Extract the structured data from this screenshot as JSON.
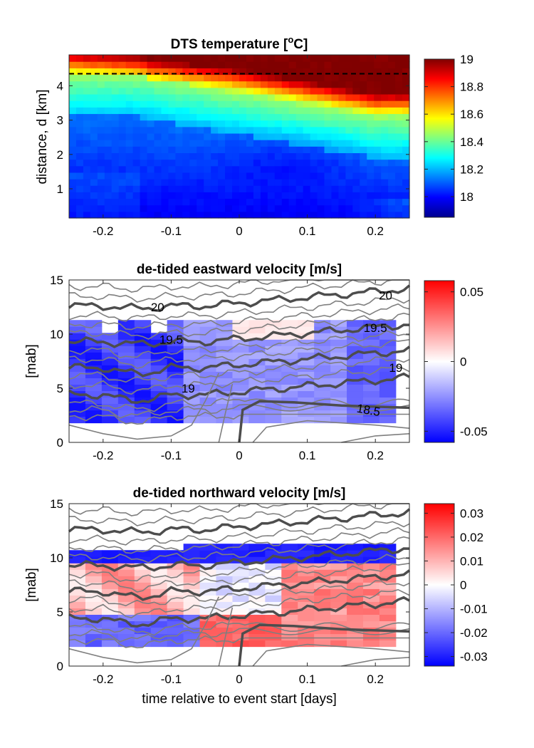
{
  "chart_data": [
    {
      "type": "heatmap",
      "title": "DTS temperature [",
      "title_sup": "o",
      "title_end": "C]",
      "ylabel": "distance, d [km]",
      "xlabel": "",
      "xlim": [
        -0.25,
        0.25
      ],
      "ylim": [
        0.15,
        4.9
      ],
      "xticks": [
        "-0.2",
        "-0.1",
        "0",
        "0.1",
        "0.2"
      ],
      "xtick_values": [
        -0.2,
        -0.1,
        0,
        0.1,
        0.2
      ],
      "yticks": [
        "1",
        "2",
        "3",
        "4"
      ],
      "ytick_values": [
        1,
        2,
        3,
        4
      ],
      "dashed_line_y": 4.35,
      "colormap": "jet",
      "clim": [
        17.85,
        19.0
      ],
      "colorbar_ticks": [
        "19",
        "18.8",
        "18.6",
        "18.4",
        "18.2",
        "18"
      ],
      "colorbar_values": [
        19.0,
        18.8,
        18.6,
        18.4,
        18.2,
        18.0
      ]
    },
    {
      "type": "heatmap",
      "title": "de-tided eastward velocity [m/s]",
      "ylabel": "[mab]",
      "xlabel": "",
      "xlim": [
        -0.25,
        0.25
      ],
      "ylim": [
        0,
        15
      ],
      "xticks": [
        "-0.2",
        "-0.1",
        "0",
        "0.1",
        "0.2"
      ],
      "xtick_values": [
        -0.2,
        -0.1,
        0,
        0.1,
        0.2
      ],
      "yticks": [
        "0",
        "5",
        "10",
        "15"
      ],
      "ytick_values": [
        0,
        5,
        10,
        15
      ],
      "colormap": "bwr",
      "clim": [
        -0.058,
        0.058
      ],
      "colorbar_ticks": [
        "0.05",
        "0",
        "-0.05"
      ],
      "colorbar_values": [
        0.05,
        0,
        -0.05
      ],
      "contour_labels": [
        {
          "text": "20",
          "x": -0.12,
          "y": 12.5
        },
        {
          "text": "20",
          "x": 0.215,
          "y": 13.6
        },
        {
          "text": "19.5",
          "x": -0.1,
          "y": 9.5
        },
        {
          "text": "19.5",
          "x": 0.2,
          "y": 10.6
        },
        {
          "text": "19",
          "x": -0.075,
          "y": 5.0
        },
        {
          "text": "19",
          "x": 0.23,
          "y": 6.9
        },
        {
          "text": "18.5",
          "x": 0.19,
          "y": 3.0
        }
      ]
    },
    {
      "type": "heatmap",
      "title": "de-tided northward velocity [m/s]",
      "ylabel": "[mab]",
      "xlabel": "time relative to event start [days]",
      "xlim": [
        -0.25,
        0.25
      ],
      "ylim": [
        0,
        15
      ],
      "xticks": [
        "-0.2",
        "-0.1",
        "0",
        "0.1",
        "0.2"
      ],
      "xtick_values": [
        -0.2,
        -0.1,
        0,
        0.1,
        0.2
      ],
      "yticks": [
        "0",
        "5",
        "10",
        "15"
      ],
      "ytick_values": [
        0,
        5,
        10,
        15
      ],
      "colormap": "bwr",
      "clim": [
        -0.034,
        0.034
      ],
      "colorbar_ticks": [
        "0.03",
        "0.02",
        "0.01",
        "0",
        "-0.01",
        "-0.02",
        "-0.03"
      ],
      "colorbar_values": [
        0.03,
        0.02,
        0.01,
        0,
        -0.01,
        -0.02,
        -0.03
      ]
    }
  ]
}
